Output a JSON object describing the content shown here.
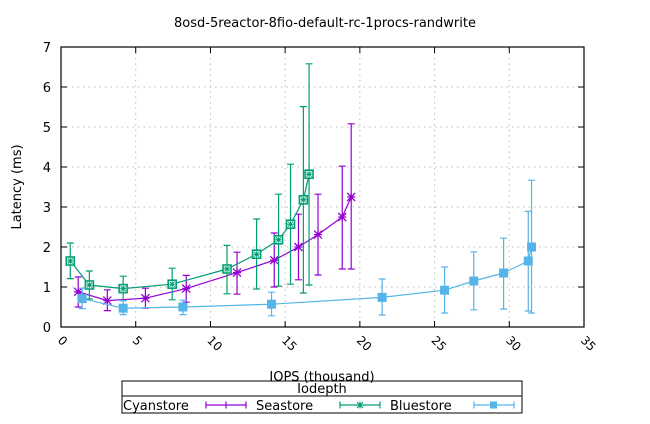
{
  "chart_data": {
    "type": "line",
    "title": "8osd-5reactor-8fio-default-rc-1procs-randwrite",
    "xlabel": "IOPS (thousand)",
    "ylabel": "Latency (ms)",
    "xlim": [
      0,
      35
    ],
    "ylim": [
      0,
      7
    ],
    "xticks": [
      "0",
      "5",
      "10",
      "15",
      "20",
      "25",
      "30",
      "35"
    ],
    "yticks": [
      "0",
      "1",
      "2",
      "3",
      "4",
      "5",
      "6",
      "7"
    ],
    "grid": true,
    "legend_title": "Iodepth",
    "legend_position": "bottom",
    "error_bars": true,
    "series": [
      {
        "name": "Cyanstore",
        "color": "#9400d3",
        "marker": "plus",
        "x": [
          1.15,
          3.1,
          5.65,
          8.38,
          11.78,
          14.27,
          15.89,
          17.2,
          18.82,
          19.42
        ],
        "y": [
          0.88,
          0.66,
          0.72,
          0.96,
          1.36,
          1.67,
          2.0,
          2.31,
          2.75,
          3.25
        ],
        "ylow": [
          0.5,
          0.41,
          0.47,
          0.62,
          0.82,
          1.0,
          1.18,
          1.3,
          1.45,
          1.45
        ],
        "yhigh": [
          1.25,
          0.93,
          0.97,
          1.29,
          1.87,
          2.35,
          2.82,
          3.32,
          4.02,
          5.08
        ]
      },
      {
        "name": "Seastore",
        "color": "#009e73",
        "marker": "star",
        "x": [
          0.62,
          1.9,
          4.16,
          7.44,
          11.11,
          13.09,
          14.56,
          15.36,
          16.22,
          16.6
        ],
        "y": [
          1.65,
          1.05,
          0.96,
          1.07,
          1.45,
          1.82,
          2.18,
          2.57,
          3.18,
          3.82
        ],
        "ylow": [
          1.21,
          0.7,
          0.66,
          0.68,
          0.83,
          0.95,
          1.02,
          1.07,
          0.85,
          1.05
        ],
        "yhigh": [
          2.1,
          1.4,
          1.27,
          1.47,
          2.04,
          2.7,
          3.32,
          4.07,
          5.51,
          6.58
        ]
      },
      {
        "name": "Bluestore",
        "color": "#56b4e9",
        "marker": "square",
        "x": [
          1.42,
          4.16,
          8.16,
          14.09,
          21.49,
          25.67,
          27.62,
          29.62,
          31.27,
          31.49
        ],
        "y": [
          0.71,
          0.47,
          0.5,
          0.57,
          0.74,
          0.92,
          1.15,
          1.35,
          1.65,
          2.0
        ],
        "ylow": [
          0.46,
          0.31,
          0.31,
          0.28,
          0.3,
          0.35,
          0.43,
          0.45,
          0.4,
          0.35
        ],
        "yhigh": [
          0.97,
          0.66,
          0.67,
          0.87,
          1.2,
          1.5,
          1.88,
          2.22,
          2.89,
          3.67
        ]
      }
    ]
  }
}
